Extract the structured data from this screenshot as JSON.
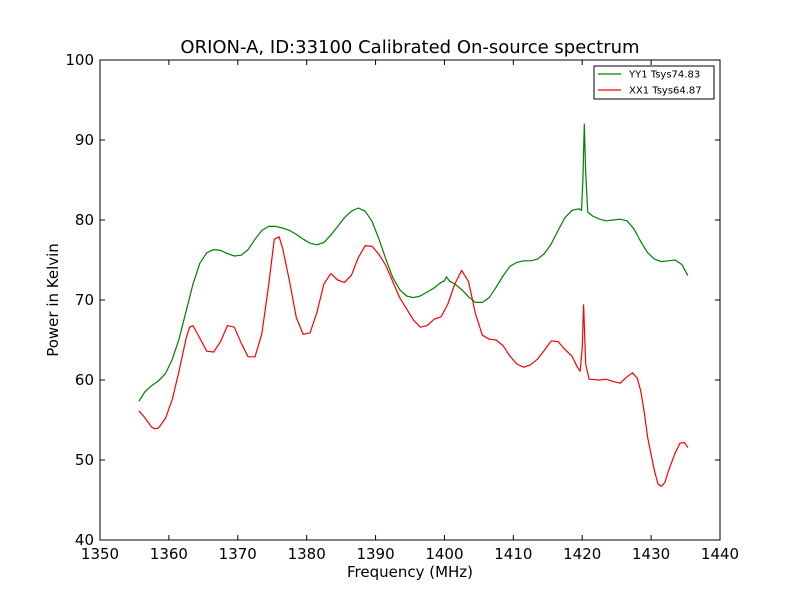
{
  "chart_data": {
    "type": "line",
    "title": "ORION-A, ID:33100 Calibrated On-source spectrum",
    "xlabel": "Frequency (MHz)",
    "ylabel": "Power in Kelvin",
    "xlim": [
      1350,
      1440
    ],
    "ylim": [
      40,
      100
    ],
    "xticks": [
      1350,
      1360,
      1370,
      1380,
      1390,
      1400,
      1410,
      1420,
      1430,
      1440
    ],
    "yticks": [
      40,
      50,
      60,
      70,
      80,
      90,
      100
    ],
    "grid": false,
    "legend_position": "top-right",
    "series": [
      {
        "name": "YY1 Tsys74.83",
        "color": "#008000",
        "points": [
          [
            1355.7,
            57.4
          ],
          [
            1356.5,
            58.5
          ],
          [
            1357.5,
            59.3
          ],
          [
            1358.5,
            59.9
          ],
          [
            1359.5,
            60.8
          ],
          [
            1360.5,
            62.6
          ],
          [
            1361.5,
            65.2
          ],
          [
            1362.5,
            68.6
          ],
          [
            1363.5,
            72.0
          ],
          [
            1364.5,
            74.6
          ],
          [
            1365.5,
            75.9
          ],
          [
            1366.5,
            76.3
          ],
          [
            1367.5,
            76.2
          ],
          [
            1368.5,
            75.8
          ],
          [
            1369.5,
            75.5
          ],
          [
            1370.5,
            75.6
          ],
          [
            1371.5,
            76.3
          ],
          [
            1372.5,
            77.6
          ],
          [
            1373.5,
            78.7
          ],
          [
            1374.5,
            79.2
          ],
          [
            1375.5,
            79.2
          ],
          [
            1376.5,
            79.0
          ],
          [
            1377.5,
            78.7
          ],
          [
            1378.5,
            78.2
          ],
          [
            1379.5,
            77.6
          ],
          [
            1380.5,
            77.1
          ],
          [
            1381.5,
            76.9
          ],
          [
            1382.5,
            77.2
          ],
          [
            1383.5,
            78.1
          ],
          [
            1384.5,
            79.2
          ],
          [
            1385.5,
            80.3
          ],
          [
            1386.5,
            81.1
          ],
          [
            1387.5,
            81.5
          ],
          [
            1388.5,
            81.1
          ],
          [
            1389.5,
            79.8
          ],
          [
            1390.5,
            77.6
          ],
          [
            1391.5,
            75.1
          ],
          [
            1392.5,
            72.8
          ],
          [
            1393.5,
            71.3
          ],
          [
            1394.5,
            70.5
          ],
          [
            1395.5,
            70.3
          ],
          [
            1396.5,
            70.5
          ],
          [
            1397.5,
            71.0
          ],
          [
            1398.5,
            71.5
          ],
          [
            1399.5,
            72.2
          ],
          [
            1400.0,
            72.4
          ],
          [
            1400.3,
            72.9
          ],
          [
            1400.7,
            72.4
          ],
          [
            1401.5,
            72.0
          ],
          [
            1402.5,
            71.3
          ],
          [
            1403.5,
            70.4
          ],
          [
            1404.5,
            69.7
          ],
          [
            1405.5,
            69.7
          ],
          [
            1406.5,
            70.3
          ],
          [
            1407.5,
            71.6
          ],
          [
            1408.5,
            73.0
          ],
          [
            1409.5,
            74.2
          ],
          [
            1410.5,
            74.7
          ],
          [
            1411.5,
            74.9
          ],
          [
            1412.5,
            74.9
          ],
          [
            1413.5,
            75.1
          ],
          [
            1414.5,
            75.8
          ],
          [
            1415.5,
            77.0
          ],
          [
            1416.5,
            78.7
          ],
          [
            1417.5,
            80.3
          ],
          [
            1418.5,
            81.2
          ],
          [
            1419.5,
            81.4
          ],
          [
            1419.9,
            81.2
          ],
          [
            1420.1,
            85.0
          ],
          [
            1420.3,
            92.0
          ],
          [
            1420.5,
            86.0
          ],
          [
            1420.8,
            81.0
          ],
          [
            1421.5,
            80.5
          ],
          [
            1422.5,
            80.1
          ],
          [
            1423.5,
            79.9
          ],
          [
            1424.5,
            80.0
          ],
          [
            1425.5,
            80.1
          ],
          [
            1426.5,
            79.9
          ],
          [
            1427.5,
            78.9
          ],
          [
            1428.5,
            77.3
          ],
          [
            1429.5,
            75.9
          ],
          [
            1430.5,
            75.1
          ],
          [
            1431.5,
            74.8
          ],
          [
            1432.5,
            74.9
          ],
          [
            1433.5,
            75.0
          ],
          [
            1434.5,
            74.4
          ],
          [
            1435.3,
            73.1
          ]
        ]
      },
      {
        "name": "XX1 Tsys64.87",
        "color": "#ff0000",
        "points": [
          [
            1355.7,
            56.1
          ],
          [
            1356.5,
            55.3
          ],
          [
            1357.5,
            54.1
          ],
          [
            1358.0,
            53.9
          ],
          [
            1358.5,
            54.0
          ],
          [
            1359.5,
            55.2
          ],
          [
            1360.5,
            57.6
          ],
          [
            1361.5,
            61.2
          ],
          [
            1362.5,
            65.2
          ],
          [
            1363.0,
            66.6
          ],
          [
            1363.5,
            66.8
          ],
          [
            1364.5,
            65.2
          ],
          [
            1365.5,
            63.6
          ],
          [
            1366.5,
            63.5
          ],
          [
            1367.5,
            64.8
          ],
          [
            1368.5,
            66.8
          ],
          [
            1369.5,
            66.6
          ],
          [
            1370.5,
            64.6
          ],
          [
            1371.5,
            62.9
          ],
          [
            1372.5,
            62.9
          ],
          [
            1373.5,
            65.8
          ],
          [
            1374.5,
            72.0
          ],
          [
            1375.3,
            77.6
          ],
          [
            1376.0,
            77.9
          ],
          [
            1376.5,
            76.5
          ],
          [
            1377.5,
            72.4
          ],
          [
            1378.5,
            67.8
          ],
          [
            1379.5,
            65.7
          ],
          [
            1380.5,
            65.9
          ],
          [
            1381.5,
            68.5
          ],
          [
            1382.5,
            72.0
          ],
          [
            1383.5,
            73.3
          ],
          [
            1384.5,
            72.5
          ],
          [
            1385.5,
            72.2
          ],
          [
            1386.5,
            73.1
          ],
          [
            1387.5,
            75.3
          ],
          [
            1388.5,
            76.8
          ],
          [
            1389.5,
            76.7
          ],
          [
            1390.5,
            75.7
          ],
          [
            1391.5,
            74.3
          ],
          [
            1392.5,
            72.3
          ],
          [
            1393.5,
            70.3
          ],
          [
            1394.5,
            68.9
          ],
          [
            1395.5,
            67.5
          ],
          [
            1396.5,
            66.6
          ],
          [
            1397.5,
            66.8
          ],
          [
            1398.5,
            67.6
          ],
          [
            1399.5,
            67.9
          ],
          [
            1400.5,
            69.5
          ],
          [
            1401.5,
            72.0
          ],
          [
            1402.5,
            73.7
          ],
          [
            1403.5,
            72.3
          ],
          [
            1404.5,
            68.3
          ],
          [
            1405.5,
            65.6
          ],
          [
            1406.5,
            65.1
          ],
          [
            1407.5,
            65.0
          ],
          [
            1408.5,
            64.3
          ],
          [
            1409.5,
            63.0
          ],
          [
            1410.5,
            62.0
          ],
          [
            1411.5,
            61.6
          ],
          [
            1412.5,
            61.9
          ],
          [
            1413.5,
            62.6
          ],
          [
            1414.5,
            63.7
          ],
          [
            1415.5,
            64.9
          ],
          [
            1416.5,
            64.8
          ],
          [
            1417.5,
            63.8
          ],
          [
            1418.5,
            63.0
          ],
          [
            1419.3,
            61.6
          ],
          [
            1419.7,
            61.1
          ],
          [
            1420.0,
            64.0
          ],
          [
            1420.2,
            69.4
          ],
          [
            1420.5,
            62.0
          ],
          [
            1421.0,
            60.1
          ],
          [
            1422.5,
            60.0
          ],
          [
            1423.5,
            60.1
          ],
          [
            1424.5,
            59.8
          ],
          [
            1425.5,
            59.6
          ],
          [
            1426.5,
            60.4
          ],
          [
            1427.3,
            60.9
          ],
          [
            1428.0,
            60.2
          ],
          [
            1428.5,
            58.6
          ],
          [
            1429.0,
            56.0
          ],
          [
            1429.5,
            52.8
          ],
          [
            1430.5,
            48.6
          ],
          [
            1431.0,
            47.0
          ],
          [
            1431.5,
            46.7
          ],
          [
            1432.0,
            47.2
          ],
          [
            1432.5,
            48.6
          ],
          [
            1433.5,
            50.9
          ],
          [
            1434.2,
            52.1
          ],
          [
            1434.8,
            52.2
          ],
          [
            1435.3,
            51.6
          ]
        ]
      }
    ]
  }
}
